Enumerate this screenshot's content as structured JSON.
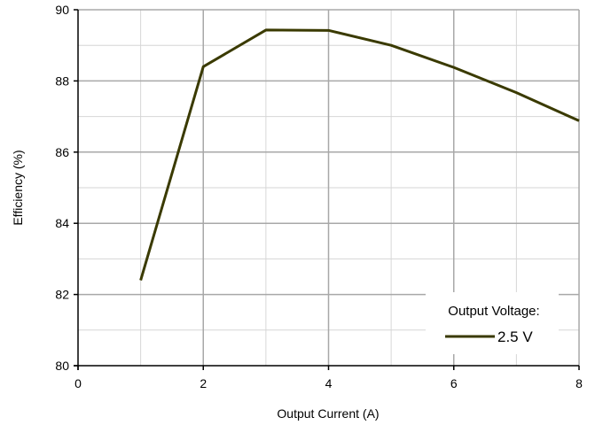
{
  "chart_data": {
    "type": "line",
    "xlabel": "Output Current (A)",
    "ylabel": "Efficiency (%)",
    "xlim": [
      0,
      8
    ],
    "ylim": [
      80,
      90
    ],
    "x_major_ticks": [
      0,
      2,
      4,
      6,
      8
    ],
    "x_minor_step": 1,
    "y_major_ticks": [
      80,
      82,
      84,
      86,
      88,
      90
    ],
    "y_minor_step": 1,
    "grid": true,
    "legend": {
      "title": "Output Voltage:",
      "placement": "bottom-right"
    },
    "series": [
      {
        "name": "2.5 V",
        "color": "#3a3a00",
        "x": [
          1,
          2,
          3,
          4,
          5,
          6,
          7,
          8
        ],
        "y": [
          82.4,
          88.4,
          89.43,
          89.42,
          89.0,
          88.38,
          87.67,
          86.88
        ]
      }
    ]
  }
}
